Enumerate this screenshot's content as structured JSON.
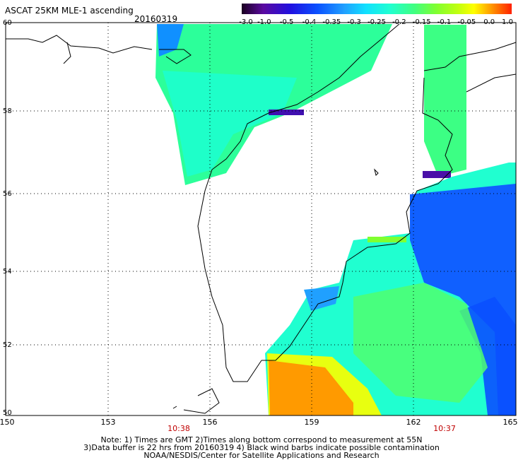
{
  "title": "ASCAT 25KM MLE-1 ascending",
  "date": "20160319",
  "colorbar": {
    "labels": [
      "-3.0",
      "-1.0",
      "-0.5",
      "-0.4",
      "-0.35",
      "-0.3",
      "-0.25",
      "-0.2",
      "-0.15",
      "-0.1",
      "-0.05",
      "0.0",
      "1.0"
    ],
    "colors": [
      "#1a0020",
      "#5a0aa0",
      "#2010e0",
      "#0a50ff",
      "#20a0ff",
      "#10e0ff",
      "#20ffd0",
      "#40ff80",
      "#80ff30",
      "#c0ff10",
      "#ffff00",
      "#ff9000",
      "#ff2000"
    ]
  },
  "axes": {
    "y_ticks": [
      "60",
      "58",
      "56",
      "54",
      "52",
      "50"
    ],
    "x_ticks": [
      "150",
      "153",
      "156",
      "159",
      "162",
      "165"
    ]
  },
  "times": [
    "10:38",
    "10:37"
  ],
  "notes": {
    "line1": "Note: 1) Times are GMT 2)Times along bottom correspond to measurement at 55N",
    "line2": "3)Data buffer is 22 hrs from 20160319 4) Black wind barbs indicate possible contamination",
    "line3": "NOAA/NESDIS/Center for Satellite Applications and Research"
  }
}
